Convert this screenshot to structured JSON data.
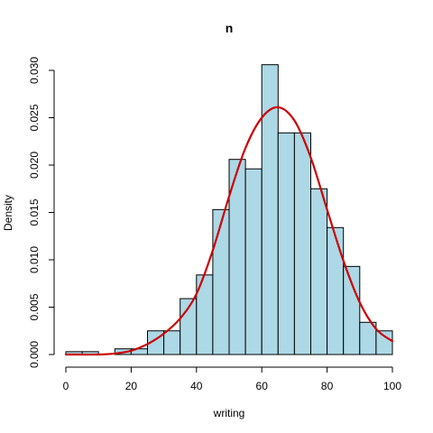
{
  "chart_data": {
    "type": "bar",
    "title": "n",
    "xlabel": "writing",
    "ylabel": "Density",
    "xlim": [
      0,
      100
    ],
    "ylim": [
      0,
      0.03
    ],
    "x_ticks": [
      0,
      20,
      40,
      60,
      80,
      100
    ],
    "x_tick_labels": [
      "0",
      "20",
      "40",
      "60",
      "80",
      "100"
    ],
    "y_ticks": [
      0.0,
      0.005,
      0.01,
      0.015,
      0.02,
      0.025,
      0.03
    ],
    "y_tick_labels": [
      "0.000",
      "0.005",
      "0.010",
      "0.015",
      "0.020",
      "0.025",
      "0.030"
    ],
    "bin_edges": [
      0,
      5,
      10,
      15,
      20,
      25,
      30,
      35,
      40,
      45,
      50,
      55,
      60,
      65,
      70,
      75,
      80,
      85,
      90,
      95,
      100
    ],
    "values": [
      0.0003,
      0.0003,
      0.0,
      0.0006,
      0.0006,
      0.0025,
      0.0025,
      0.0059,
      0.0084,
      0.0153,
      0.0206,
      0.0196,
      0.0306,
      0.0234,
      0.0234,
      0.0175,
      0.0134,
      0.0093,
      0.0034,
      0.0025
    ],
    "bar_color": "#ADD8E6",
    "grid": false,
    "density_curve": {
      "color": "#CC0000",
      "x": [
        0,
        10,
        15,
        20,
        25,
        30,
        35,
        40,
        45,
        50,
        55,
        60,
        65,
        70,
        75,
        80,
        85,
        90,
        95,
        100
      ],
      "y": [
        0.0,
        0.0,
        0.0001,
        0.0004,
        0.0011,
        0.0022,
        0.0038,
        0.0064,
        0.011,
        0.0167,
        0.0218,
        0.025,
        0.0261,
        0.0247,
        0.0208,
        0.0153,
        0.0099,
        0.0055,
        0.0027,
        0.0014
      ]
    }
  }
}
